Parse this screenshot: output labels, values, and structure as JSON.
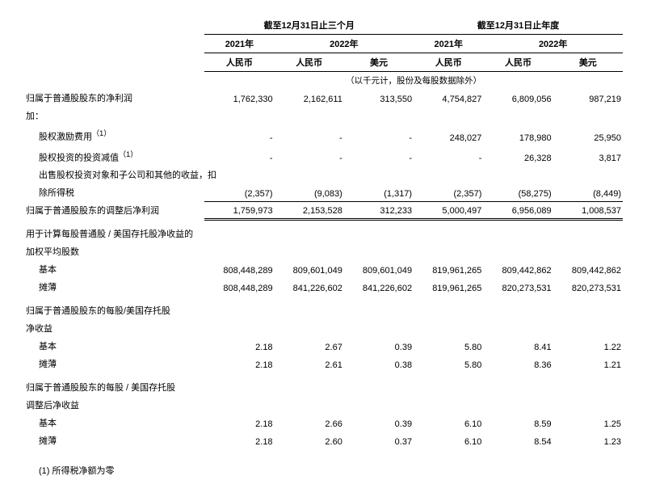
{
  "headers": {
    "period_q": "截至12月31日止三个月",
    "period_y": "截至12月31日止年度",
    "y2021": "2021年",
    "y2022": "2022年",
    "rmb": "人民币",
    "usd": "美元",
    "unit_note": "（以千元计，股份及每股数据除外）"
  },
  "rows": {
    "net_income_common": {
      "label": "归属于普通股股东的净利润",
      "q_2021_rmb": "1,762,330",
      "q_2022_rmb": "2,162,611",
      "q_2022_usd": "313,550",
      "y_2021_rmb": "4,754,827",
      "y_2022_rmb": "6,809,056",
      "y_2022_usd": "987,219"
    },
    "add": {
      "label": "加："
    },
    "share_comp": {
      "label": "股权激励费用",
      "sup": "（1）",
      "q_2021_rmb": "-",
      "q_2022_rmb": "-",
      "q_2022_usd": "-",
      "y_2021_rmb": "248,027",
      "y_2022_rmb": "178,980",
      "y_2022_usd": "25,950"
    },
    "impairment": {
      "label": "股权投资的投资减值",
      "sup": "（1）",
      "q_2021_rmb": "-",
      "q_2022_rmb": "-",
      "q_2022_usd": "-",
      "y_2021_rmb": "-",
      "y_2022_rmb": "26,328",
      "y_2022_usd": "3,817"
    },
    "disposal_line1": {
      "label": "出售股权投资对象和子公司和其他的收益，扣"
    },
    "disposal_line2": {
      "label": "除所得税",
      "q_2021_rmb": "(2,357)",
      "q_2022_rmb": "(9,083)",
      "q_2022_usd": "(1,317)",
      "y_2021_rmb": "(2,357)",
      "y_2022_rmb": "(58,275)",
      "y_2022_usd": "(8,449)"
    },
    "adj_net_income": {
      "label": "归属于普通股股东的调整后净利润",
      "q_2021_rmb": "1,759,973",
      "q_2022_rmb": "2,153,528",
      "q_2022_usd": "312,233",
      "y_2021_rmb": "5,000,497",
      "y_2022_rmb": "6,956,089",
      "y_2022_usd": "1,008,537"
    },
    "wad_shares_header1": {
      "label": "用于计算每股普通股 / 美国存托股净收益的"
    },
    "wad_shares_header2": {
      "label": "加权平均股数"
    },
    "basic_shares": {
      "label": "基本",
      "q_2021_rmb": "808,448,289",
      "q_2022_rmb": "809,601,049",
      "q_2022_usd": "809,601,049",
      "y_2021_rmb": "819,961,265",
      "y_2022_rmb": "809,442,862",
      "y_2022_usd": "809,442,862"
    },
    "diluted_shares": {
      "label": "摊薄",
      "q_2021_rmb": "808,448,289",
      "q_2022_rmb": "841,226,602",
      "q_2022_usd": "841,226,602",
      "y_2021_rmb": "819,961,265",
      "y_2022_rmb": "820,273,531",
      "y_2022_usd": "820,273,531"
    },
    "eps_header1": {
      "label": "归属于普通股股东的每股/美国存托股"
    },
    "eps_header2": {
      "label": "净收益"
    },
    "basic_eps": {
      "label": "基本",
      "q_2021_rmb": "2.18",
      "q_2022_rmb": "2.67",
      "q_2022_usd": "0.39",
      "y_2021_rmb": "5.80",
      "y_2022_rmb": "8.41",
      "y_2022_usd": "1.22"
    },
    "diluted_eps": {
      "label": "摊薄",
      "q_2021_rmb": "2.18",
      "q_2022_rmb": "2.61",
      "q_2022_usd": "0.38",
      "y_2021_rmb": "5.80",
      "y_2022_rmb": "8.36",
      "y_2022_usd": "1.21"
    },
    "adj_eps_header1": {
      "label": "归属于普通股股东的每股 / 美国存托股"
    },
    "adj_eps_header2": {
      "label": "调整后净收益"
    },
    "adj_basic_eps": {
      "label": "基本",
      "q_2021_rmb": "2.18",
      "q_2022_rmb": "2.66",
      "q_2022_usd": "0.39",
      "y_2021_rmb": "6.10",
      "y_2022_rmb": "8.59",
      "y_2022_usd": "1.25"
    },
    "adj_diluted_eps": {
      "label": "摊薄",
      "q_2021_rmb": "2.18",
      "q_2022_rmb": "2.60",
      "q_2022_usd": "0.37",
      "y_2021_rmb": "6.10",
      "y_2022_rmb": "8.54",
      "y_2022_usd": "1.23"
    }
  },
  "footnote": "(1) 所得税净额为零"
}
